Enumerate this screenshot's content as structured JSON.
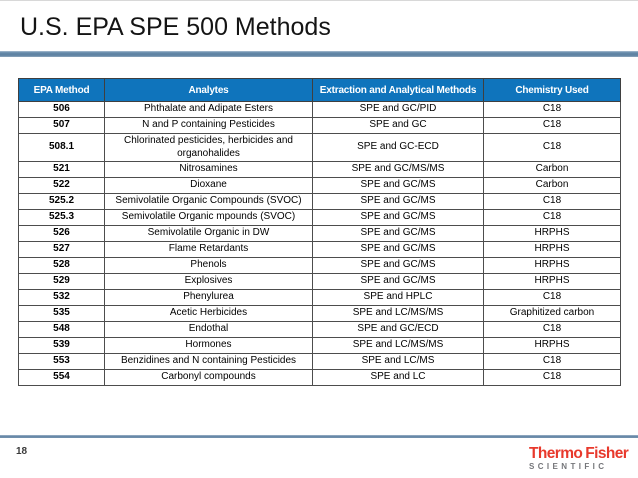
{
  "slide": {
    "title": "U.S. EPA SPE 500 Methods",
    "page_number": "18"
  },
  "table": {
    "headers": [
      "EPA Method",
      "Analytes",
      "Extraction and Analytical Methods",
      "Chemistry Used"
    ],
    "header_keys": [
      "epa-method",
      "analytes",
      "extraction-method",
      "chemistry-used"
    ],
    "rows": [
      [
        "506",
        "Phthalate and Adipate Esters",
        "SPE and GC/PID",
        "C18"
      ],
      [
        "507",
        "N and P containing Pesticides",
        "SPE and GC",
        "C18"
      ],
      [
        "508.1",
        "Chlorinated pesticides, herbicides and organohalides",
        "SPE and GC-ECD",
        "C18"
      ],
      [
        "521",
        "Nitrosamines",
        "SPE and GC/MS/MS",
        "Carbon"
      ],
      [
        "522",
        "Dioxane",
        "SPE and GC/MS",
        "Carbon"
      ],
      [
        "525.2",
        "Semivolatile Organic Compounds (SVOC)",
        "SPE and GC/MS",
        "C18"
      ],
      [
        "525.3",
        "Semivolatile Organic mpounds (SVOC)",
        "SPE and GC/MS",
        "C18"
      ],
      [
        "526",
        "Semivolatile Organic in DW",
        "SPE and GC/MS",
        "HRPHS"
      ],
      [
        "527",
        "Flame Retardants",
        "SPE and GC/MS",
        "HRPHS"
      ],
      [
        "528",
        "Phenols",
        "SPE and GC/MS",
        "HRPHS"
      ],
      [
        "529",
        "Explosives",
        "SPE and GC/MS",
        "HRPHS"
      ],
      [
        "532",
        "Phenylurea",
        "SPE and HPLC",
        "C18"
      ],
      [
        "535",
        "Acetic Herbicides",
        "SPE and LC/MS/MS",
        "Graphitized carbon"
      ],
      [
        "548",
        "Endothal",
        "SPE and GC/ECD",
        "C18"
      ],
      [
        "539",
        "Hormones",
        "SPE and LC/MS/MS",
        "HRPHS"
      ],
      [
        "553",
        "Benzidines and N containing Pesticides",
        "SPE and LC/MS",
        "C18"
      ],
      [
        "554",
        "Carbonyl compounds",
        "SPE and LC",
        "C18"
      ]
    ]
  },
  "logo": {
    "brand_part1": "Thermo",
    "brand_part2": "Fisher",
    "sub": "SCIENTIFIC"
  },
  "colors": {
    "header_bg": "#0f74bc",
    "rule": "#5d81a1",
    "brand_red": "#e8392c",
    "brand_gray": "#75767a"
  }
}
